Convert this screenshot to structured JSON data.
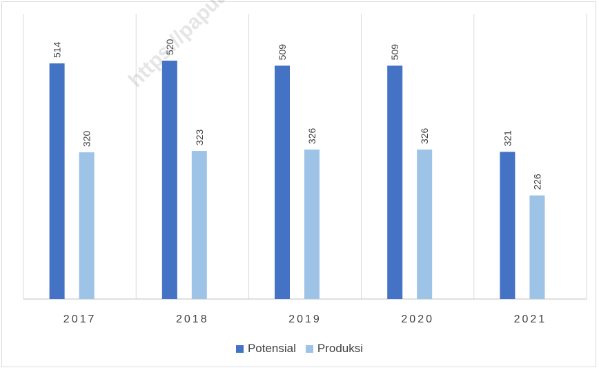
{
  "chart_data": {
    "type": "bar",
    "categories": [
      "2017",
      "2018",
      "2019",
      "2020",
      "2021"
    ],
    "series": [
      {
        "name": "Potensial",
        "values": [
          514,
          520,
          509,
          509,
          321
        ],
        "color": "#4472c4"
      },
      {
        "name": "Produksi",
        "values": [
          320,
          323,
          326,
          326,
          226
        ],
        "color": "#9dc3e6"
      }
    ],
    "data_labels": true,
    "data_label_orientation": "vertical",
    "grid": "vertical-category-lines",
    "legend_position": "bottom"
  },
  "watermark": {
    "text": "https://papuabaratprov.go.id"
  }
}
